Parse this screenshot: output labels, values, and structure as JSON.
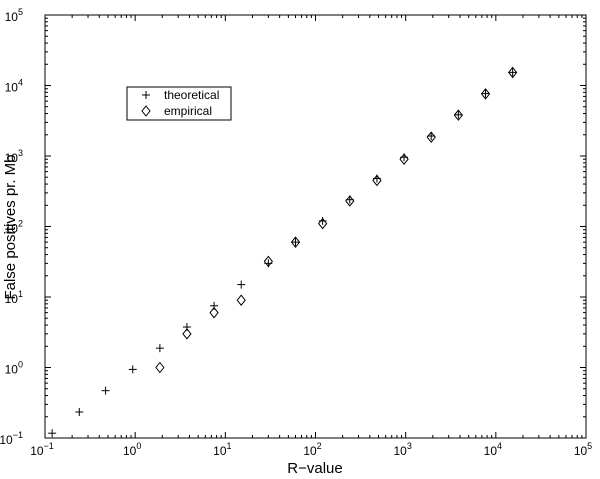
{
  "chart_data": {
    "type": "scatter",
    "title": "",
    "xlabel": "R−value",
    "ylabel": "False positives pr. Mb",
    "x_scale": "log",
    "y_scale": "log",
    "xlim": [
      0.1,
      100000
    ],
    "ylim": [
      0.1,
      100000
    ],
    "x_ticks": [
      {
        "base": "10",
        "exp": "−1"
      },
      {
        "base": "10",
        "exp": "0"
      },
      {
        "base": "10",
        "exp": "1"
      },
      {
        "base": "10",
        "exp": "2"
      },
      {
        "base": "10",
        "exp": "3"
      },
      {
        "base": "10",
        "exp": "4"
      },
      {
        "base": "10",
        "exp": "5"
      }
    ],
    "y_ticks": [
      {
        "base": "10",
        "exp": "−1"
      },
      {
        "base": "10",
        "exp": "0"
      },
      {
        "base": "10",
        "exp": "1"
      },
      {
        "base": "10",
        "exp": "2"
      },
      {
        "base": "10",
        "exp": "3"
      },
      {
        "base": "10",
        "exp": "4"
      },
      {
        "base": "10",
        "exp": "5"
      }
    ],
    "grid": false,
    "legend_position": "top-left",
    "series": [
      {
        "name": "theoretical",
        "marker": "plus",
        "color": "#000000",
        "x": [
          0.12,
          0.24,
          0.47,
          0.94,
          1.88,
          3.75,
          7.5,
          15,
          30,
          60,
          120,
          240,
          480,
          960,
          1920,
          3840,
          7680,
          15360
        ],
        "y": [
          0.117,
          0.234,
          0.469,
          0.94,
          1.88,
          3.75,
          7.5,
          15,
          30,
          60,
          120,
          240,
          480,
          960,
          1920,
          3840,
          7680,
          15360
        ]
      },
      {
        "name": "empirical",
        "marker": "diamond",
        "color": "#000000",
        "x": [
          1.88,
          3.75,
          7.5,
          15,
          30,
          60,
          120,
          240,
          480,
          960,
          1920,
          3840,
          7680,
          15360
        ],
        "y": [
          1.0,
          3.0,
          6.0,
          9.0,
          32,
          60,
          110,
          230,
          450,
          900,
          1850,
          3800,
          7600,
          15300
        ]
      }
    ]
  }
}
